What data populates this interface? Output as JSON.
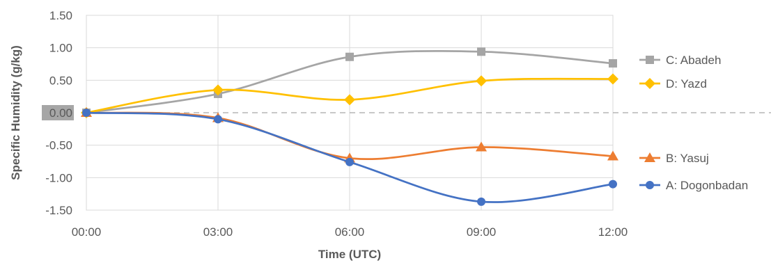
{
  "chart_data": {
    "type": "line",
    "xlabel": "Time (UTC)",
    "ylabel": "Specific Humidity (g/kg)",
    "categories": [
      "00:00",
      "03:00",
      "06:00",
      "09:00",
      "12:00"
    ],
    "ylim": [
      -1.5,
      1.5
    ],
    "yticks": [
      "1.50",
      "1.00",
      "0.50",
      "0.00",
      "-0.50",
      "-1.00",
      "-1.50"
    ],
    "yticks_values": [
      1.5,
      1.0,
      0.5,
      0.0,
      -0.5,
      -1.0,
      -1.5
    ],
    "grid": true,
    "legend_position": "right",
    "series": [
      {
        "name": "C: Abadeh",
        "color": "#a5a5a5",
        "marker": "square",
        "values": [
          0.0,
          0.29,
          0.86,
          0.94,
          0.76
        ]
      },
      {
        "name": "D: Yazd",
        "color": "#ffc000",
        "marker": "diamond",
        "values": [
          0.0,
          0.35,
          0.2,
          0.49,
          0.52
        ]
      },
      {
        "name": "B: Yasuj",
        "color": "#ed7d31",
        "marker": "triangle",
        "values": [
          0.0,
          -0.08,
          -0.7,
          -0.53,
          -0.67
        ]
      },
      {
        "name": "A: Dogonbadan",
        "color": "#4472c4",
        "marker": "circle",
        "values": [
          0.0,
          -0.1,
          -0.76,
          -1.37,
          -1.1
        ]
      }
    ]
  }
}
